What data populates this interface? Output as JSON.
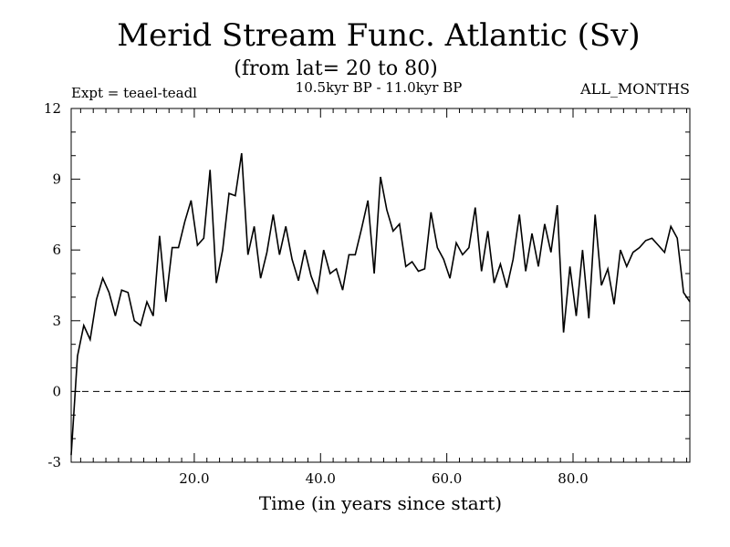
{
  "chart_data": {
    "type": "line",
    "title": "Merid Stream Func. Atlantic (Sv)",
    "subtitle": "(from lat= 20 to 80)",
    "experiment": "Expt = teael-teadl",
    "period": "10.5kyr BP - 11.0kyr BP",
    "season": "ALL_MONTHS",
    "xlabel": "Time (in years since start)",
    "ylabel": "",
    "xlim": [
      0.5,
      98.5
    ],
    "ylim": [
      -3,
      12
    ],
    "x_ticks": [
      20,
      40,
      60,
      80
    ],
    "x_tick_labels": [
      "20.0",
      "40.0",
      "60.0",
      "80.0"
    ],
    "y_ticks": [
      -3,
      0,
      3,
      6,
      9,
      12
    ],
    "y_tick_labels": [
      "-3",
      "0",
      "3",
      "6",
      "9",
      "12"
    ],
    "reference_line": {
      "y": 0,
      "style": "dashed"
    },
    "x_start": 0.5,
    "x_step": 1,
    "values": [
      -2.7,
      1.5,
      2.8,
      2.2,
      3.9,
      4.8,
      4.2,
      3.2,
      4.3,
      4.2,
      3.0,
      2.8,
      3.8,
      3.2,
      6.6,
      3.8,
      6.1,
      6.1,
      7.2,
      8.1,
      6.2,
      6.5,
      9.4,
      4.6,
      6.0,
      8.4,
      8.3,
      10.1,
      5.8,
      7.0,
      4.8,
      5.9,
      7.5,
      5.8,
      7.0,
      5.6,
      4.7,
      6.0,
      4.9,
      4.2,
      6.0,
      5.0,
      5.2,
      4.3,
      5.8,
      5.8,
      6.9,
      8.1,
      5.0,
      9.1,
      7.7,
      6.8,
      7.1,
      5.3,
      5.5,
      5.1,
      5.2,
      7.6,
      6.1,
      5.6,
      4.8,
      6.3,
      5.8,
      6.1,
      7.8,
      5.1,
      6.8,
      4.6,
      5.4,
      4.4,
      5.6,
      7.5,
      5.1,
      6.7,
      5.3,
      7.1,
      5.9,
      7.9,
      2.5,
      5.3,
      3.2,
      6.0,
      3.1,
      7.5,
      4.5,
      5.2,
      3.7,
      6.0,
      5.3,
      5.9,
      6.1,
      6.4,
      6.5,
      6.2,
      5.9,
      7.0,
      6.5,
      4.2,
      3.8
    ]
  }
}
